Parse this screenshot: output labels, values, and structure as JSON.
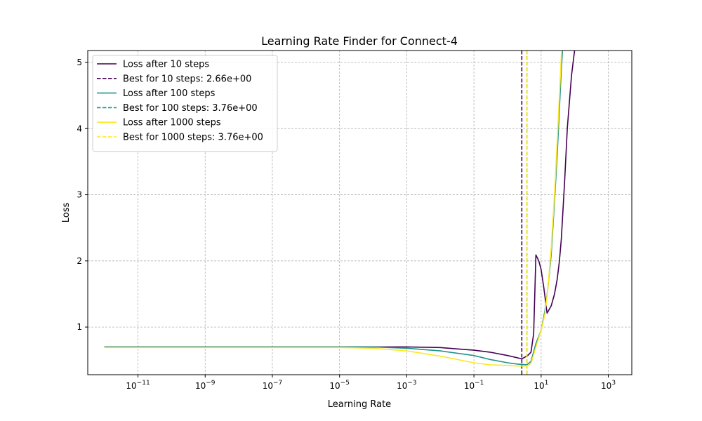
{
  "chart_data": {
    "type": "line",
    "title": "Learning Rate Finder for Connect-4",
    "xlabel": "Learning Rate",
    "ylabel": "Loss",
    "xscale": "log",
    "xlim": [
      3.2e-13,
      5000.0
    ],
    "ylim": [
      0.28,
      5.18
    ],
    "grid": true,
    "legend_position": "top-left",
    "x_ticks": [
      {
        "value": 1e-11,
        "base": "10",
        "exp": "−11"
      },
      {
        "value": 1e-09,
        "base": "10",
        "exp": "−9"
      },
      {
        "value": 1e-07,
        "base": "10",
        "exp": "−7"
      },
      {
        "value": 1e-05,
        "base": "10",
        "exp": "−5"
      },
      {
        "value": 0.001,
        "base": "10",
        "exp": "−3"
      },
      {
        "value": 0.1,
        "base": "10",
        "exp": "−1"
      },
      {
        "value": 10,
        "base": "10",
        "exp": "1"
      },
      {
        "value": 1000,
        "base": "10",
        "exp": "3"
      }
    ],
    "y_ticks": [
      {
        "value": 1,
        "label": "1"
      },
      {
        "value": 2,
        "label": "2"
      },
      {
        "value": 3,
        "label": "3"
      },
      {
        "value": 4,
        "label": "4"
      },
      {
        "value": 5,
        "label": "5"
      }
    ],
    "series": [
      {
        "name": "Loss after 10 steps",
        "color": "#440154",
        "style": "solid",
        "x": [
          1e-12,
          1e-11,
          1e-10,
          1e-09,
          1e-08,
          1e-07,
          1e-06,
          1e-05,
          0.0001,
          0.001,
          0.01,
          0.03,
          0.1,
          0.3,
          1,
          2.66,
          4,
          5,
          6,
          7,
          8.5,
          10,
          12,
          15,
          20,
          25,
          30,
          35,
          40,
          50,
          60,
          80,
          100,
          120
        ],
        "y": [
          0.7,
          0.7,
          0.7,
          0.7,
          0.7,
          0.7,
          0.7,
          0.7,
          0.7,
          0.7,
          0.69,
          0.67,
          0.65,
          0.62,
          0.57,
          0.52,
          0.57,
          0.62,
          0.9,
          2.09,
          2.0,
          1.87,
          1.6,
          1.21,
          1.32,
          1.5,
          1.72,
          2.0,
          2.33,
          3.2,
          4.0,
          4.8,
          5.2,
          5.4
        ]
      },
      {
        "name": "Best for 10 steps: 2.66e+00",
        "color": "#440154",
        "style": "dashed",
        "vline": 2.66
      },
      {
        "name": "Loss after 100 steps",
        "color": "#21918c",
        "style": "solid",
        "x": [
          1e-12,
          1e-11,
          1e-10,
          1e-09,
          1e-08,
          1e-07,
          1e-06,
          1e-05,
          0.0001,
          0.001,
          0.01,
          0.1,
          0.3,
          1,
          2,
          3.76,
          5,
          7,
          10,
          13,
          16,
          20,
          25,
          30,
          35,
          40,
          45
        ],
        "y": [
          0.7,
          0.7,
          0.7,
          0.7,
          0.7,
          0.7,
          0.7,
          0.7,
          0.7,
          0.68,
          0.64,
          0.57,
          0.51,
          0.46,
          0.44,
          0.43,
          0.48,
          0.75,
          0.95,
          1.25,
          1.6,
          2.1,
          2.9,
          3.6,
          4.3,
          4.9,
          5.3
        ]
      },
      {
        "name": "Best for 100 steps: 3.76e+00",
        "color": "#21918c",
        "style": "dashed",
        "vline": 3.76
      },
      {
        "name": "Loss after 1000 steps",
        "color": "#fde725",
        "style": "solid",
        "x": [
          1e-12,
          1e-11,
          1e-10,
          1e-09,
          1e-08,
          1e-07,
          1e-06,
          1e-05,
          0.0001,
          0.001,
          0.01,
          0.1,
          0.3,
          1,
          2,
          3.76,
          5,
          7,
          10,
          13,
          16,
          20,
          25,
          30,
          35,
          40,
          45
        ],
        "y": [
          0.69,
          0.69,
          0.69,
          0.69,
          0.69,
          0.69,
          0.69,
          0.69,
          0.68,
          0.64,
          0.56,
          0.46,
          0.43,
          0.42,
          0.41,
          0.41,
          0.45,
          0.7,
          0.95,
          1.2,
          1.6,
          2.2,
          3.0,
          3.8,
          4.5,
          5.1,
          5.4
        ]
      },
      {
        "name": "Best for 1000 steps: 3.76e+00",
        "color": "#fde725",
        "style": "dashed",
        "vline": 3.76
      }
    ]
  }
}
